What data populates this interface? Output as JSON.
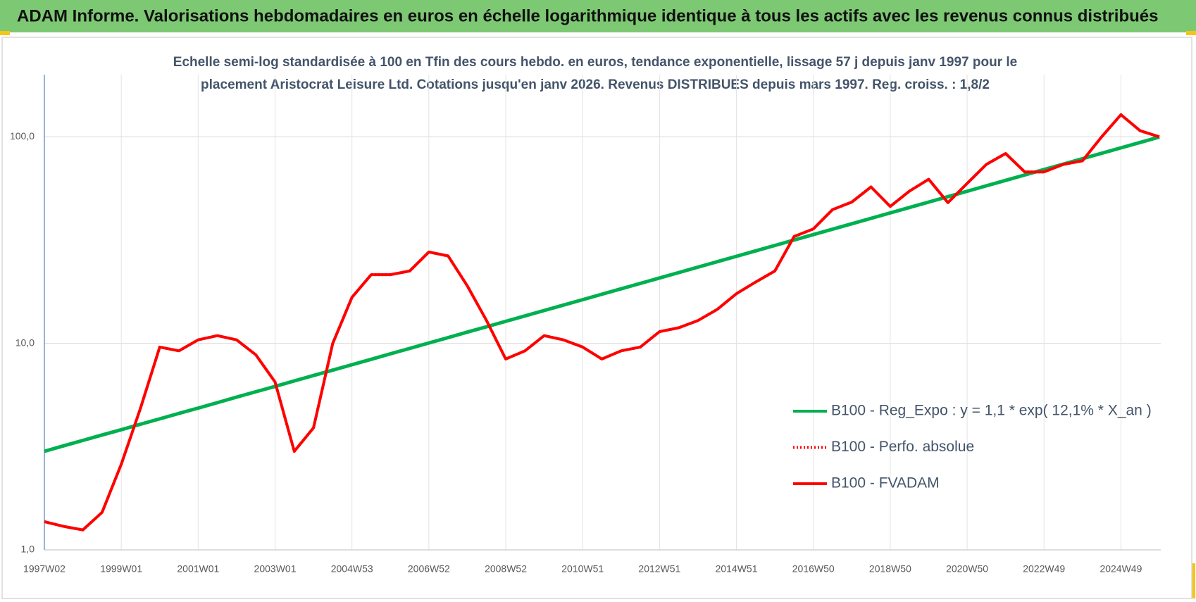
{
  "page_title": "ADAM Informe. Valorisations hebdomadaires en euros en échelle logarithmique identique à tous les actifs avec les revenus connus distribués",
  "chart_data": {
    "type": "line",
    "title": [
      "Echelle semi-log standardisée à 100 en Tfin des cours hebdo. en euros, tendance exponentielle, lissage 57 j depuis janv 1997 pour le",
      "placement Aristocrat Leisure Ltd. Cotations jusqu'en janv 2026. Revenus DISTRIBUES depuis mars 1997. Reg. croiss. : 1,8/2"
    ],
    "categories": [
      "1997W02",
      null,
      null,
      null,
      "1999W01",
      null,
      null,
      null,
      "2001W01",
      null,
      null,
      null,
      "2003W01",
      null,
      null,
      null,
      "2004W53",
      null,
      null,
      null,
      "2006W52",
      null,
      null,
      null,
      "2008W52",
      null,
      null,
      null,
      "2010W51",
      null,
      null,
      null,
      "2012W51",
      null,
      null,
      null,
      "2014W51",
      null,
      null,
      null,
      "2016W50",
      null,
      null,
      null,
      "2018W50",
      null,
      null,
      null,
      "2020W50",
      null,
      null,
      null,
      "2022W49",
      null,
      null,
      null,
      "2024W49",
      null,
      null
    ],
    "series": [
      {
        "name": "B100 - Reg_Expo : y = 1,1 * exp( 12,1% *  X_an )",
        "color": "#00b050",
        "style": "solid",
        "values": [
          3.0,
          3.19,
          3.39,
          3.6,
          3.82,
          4.06,
          4.31,
          4.58,
          4.86,
          5.16,
          5.49,
          5.83,
          6.19,
          6.58,
          6.99,
          7.42,
          7.88,
          8.37,
          8.9,
          9.45,
          10.04,
          10.66,
          11.33,
          12.03,
          12.78,
          13.58,
          14.42,
          15.32,
          16.28,
          17.29,
          18.37,
          19.51,
          20.73,
          22.02,
          23.39,
          24.85,
          26.4,
          28.04,
          29.79,
          31.64,
          33.61,
          35.71,
          37.93,
          40.3,
          42.81,
          45.47,
          48.31,
          51.31,
          54.51,
          57.91,
          61.51,
          65.35,
          69.42,
          73.74,
          78.33,
          83.21,
          88.4,
          93.91,
          99.76
        ]
      },
      {
        "name": "B100 - Perfo. absolue",
        "color": "#ff0000",
        "style": "dotted",
        "values": [
          1.37,
          1.3,
          1.25,
          1.52,
          2.6,
          4.86,
          9.6,
          9.2,
          10.4,
          10.9,
          10.4,
          8.8,
          6.5,
          3.0,
          3.9,
          10.0,
          16.7,
          21.5,
          21.5,
          22.4,
          27.7,
          26.5,
          19.0,
          12.9,
          8.4,
          9.2,
          10.9,
          10.4,
          9.6,
          8.4,
          9.2,
          9.6,
          11.4,
          11.9,
          12.9,
          14.6,
          17.4,
          19.8,
          22.4,
          32.9,
          35.8,
          44.4,
          48.3,
          57.2,
          46,
          54.6,
          62.3,
          48,
          59.5,
          73.5,
          83,
          67.6,
          67.6,
          73.5,
          76.5,
          100,
          128,
          107,
          100
        ]
      },
      {
        "name": "B100 - FVADAM",
        "color": "#ff0000",
        "style": "solid",
        "values": [
          1.37,
          1.3,
          1.25,
          1.52,
          2.6,
          4.86,
          9.6,
          9.2,
          10.4,
          10.9,
          10.4,
          8.8,
          6.5,
          3.0,
          3.9,
          10.0,
          16.7,
          21.5,
          21.5,
          22.4,
          27.7,
          26.5,
          19.0,
          12.9,
          8.4,
          9.2,
          10.9,
          10.4,
          9.6,
          8.4,
          9.2,
          9.6,
          11.4,
          11.9,
          12.9,
          14.6,
          17.4,
          19.8,
          22.4,
          32.9,
          35.8,
          44.4,
          48.3,
          57.2,
          46,
          54.6,
          62.3,
          48,
          59.5,
          73.5,
          83,
          67.6,
          67.6,
          73.5,
          76.5,
          100,
          128,
          107,
          100
        ]
      }
    ],
    "log_y": true,
    "ylim": [
      1,
      200
    ],
    "yticks": [
      {
        "value": 1,
        "label": "1,0"
      },
      {
        "value": 10,
        "label": "10,0"
      },
      {
        "value": 100,
        "label": "100,0"
      }
    ],
    "grid": true,
    "legend": "right"
  }
}
